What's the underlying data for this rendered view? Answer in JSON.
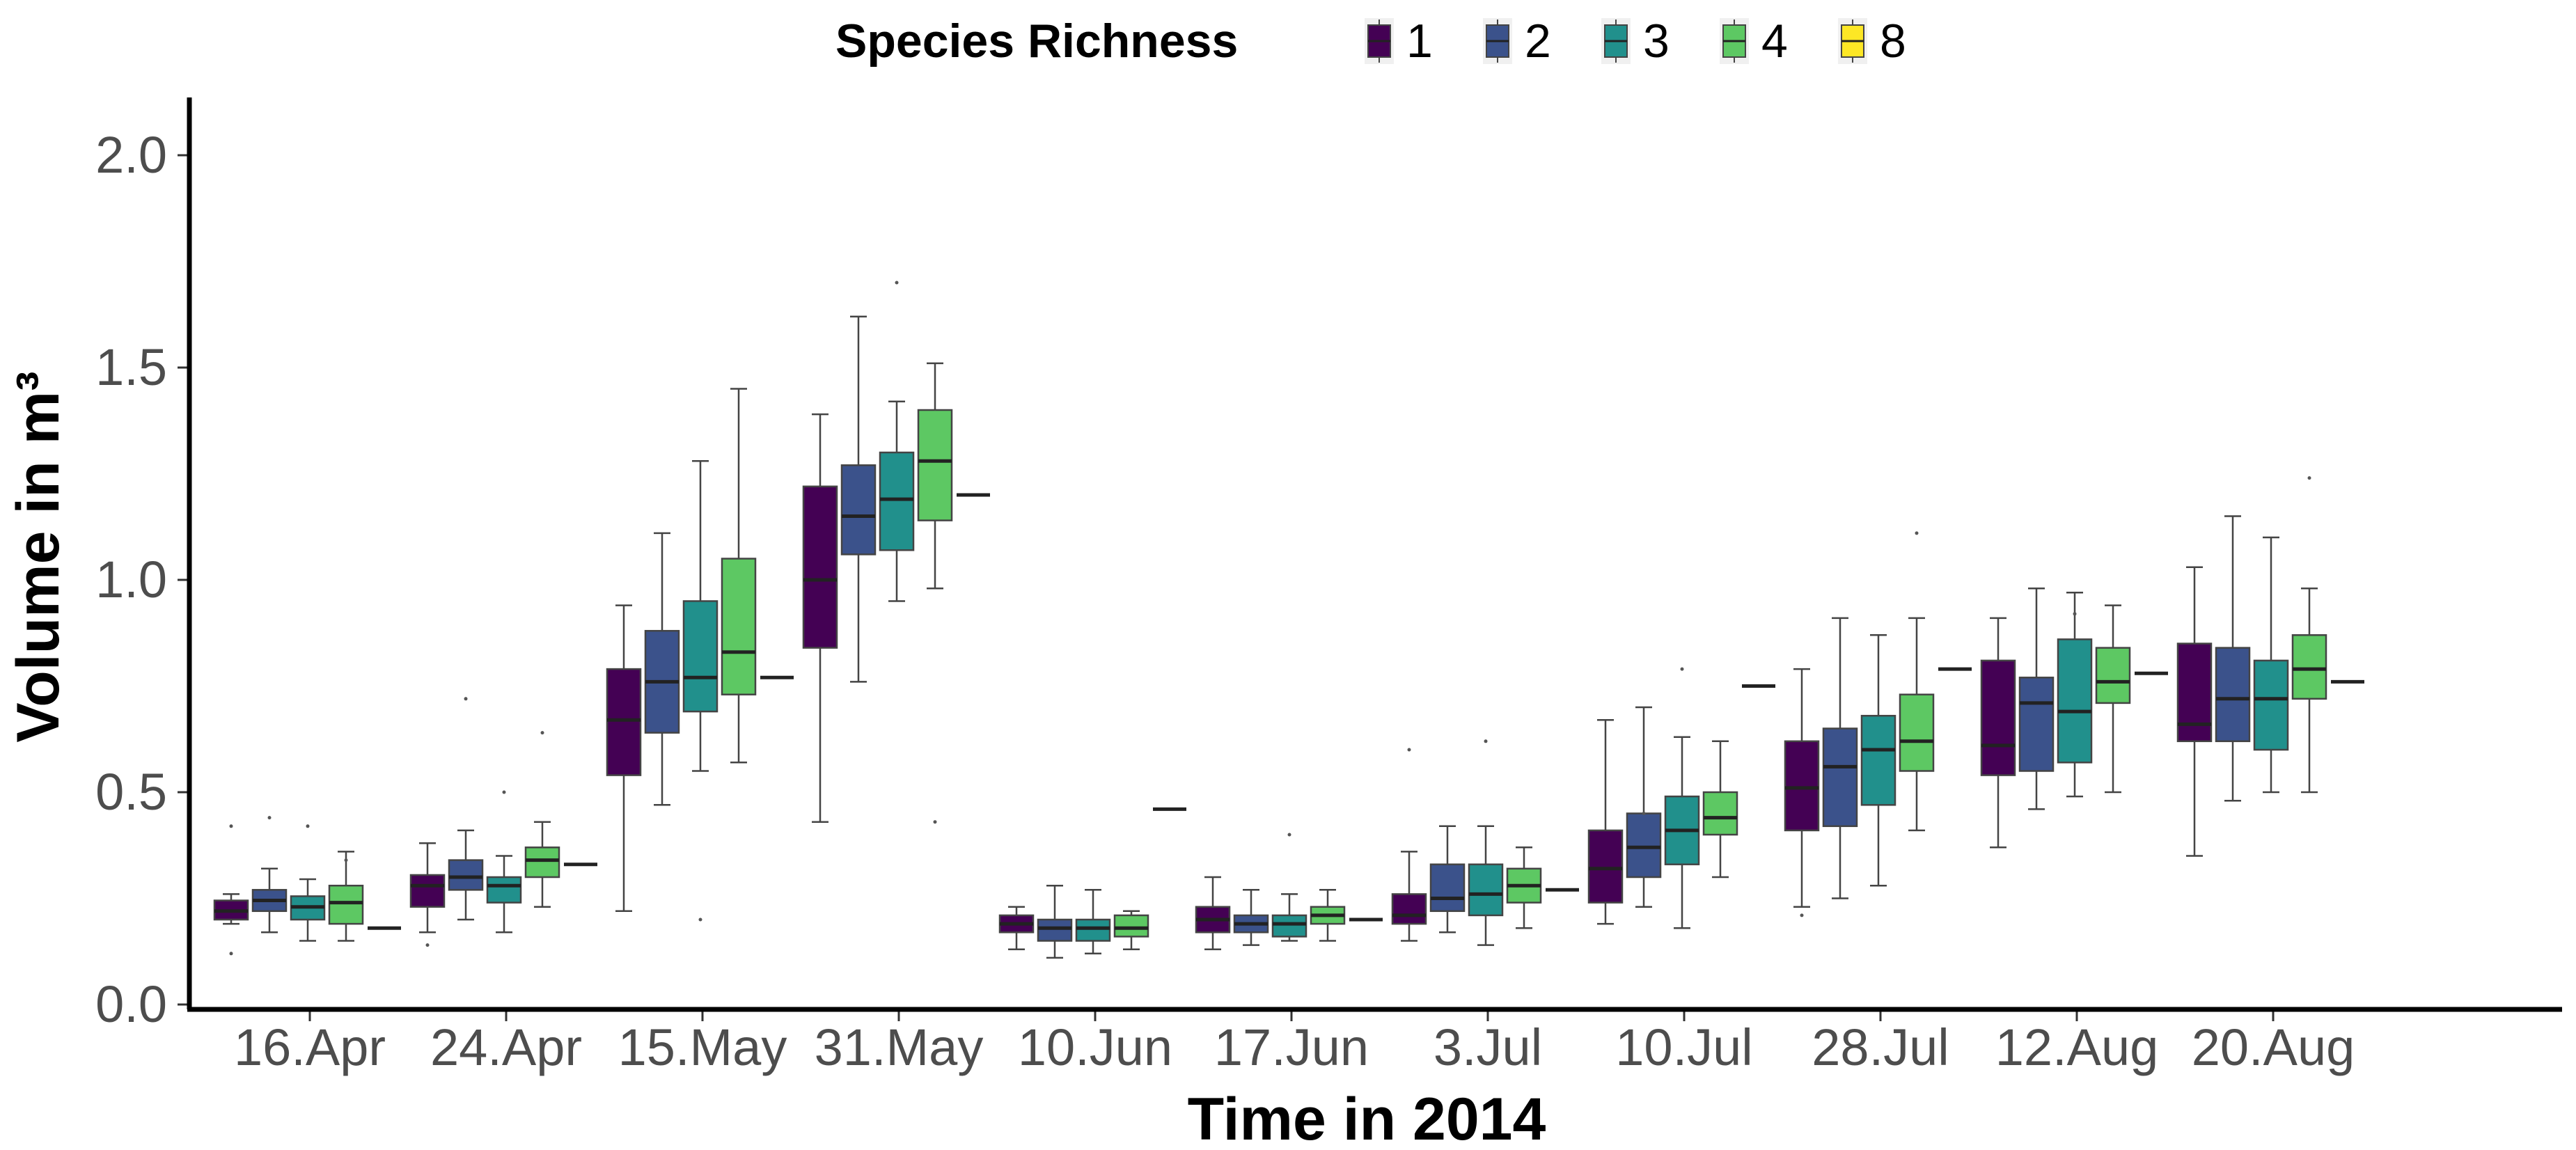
{
  "chart_data": {
    "type": "boxplot",
    "title": "",
    "xlabel": "Time in 2014",
    "ylabel": "Volume in m³",
    "ylim": [
      0,
      2.0
    ],
    "yticks": [
      "0.0",
      "0.5",
      "1.0",
      "1.5",
      "2.0"
    ],
    "ytick_values": [
      0,
      0.5,
      1.0,
      1.5,
      2.0
    ],
    "grid": false,
    "legend": {
      "title": "Species Richness",
      "position": "top",
      "entries": [
        "1",
        "2",
        "3",
        "4",
        "8"
      ]
    },
    "series": [
      {
        "name": "1",
        "color": "#440154"
      },
      {
        "name": "2",
        "color": "#3B528B"
      },
      {
        "name": "3",
        "color": "#21908C"
      },
      {
        "name": "4",
        "color": "#5DC863"
      },
      {
        "name": "8",
        "color": "#FDE725"
      }
    ],
    "categories": [
      "16.Apr",
      "24.Apr",
      "15.May",
      "31.May",
      "10.Jun",
      "17.Jun",
      "3.Jul",
      "10.Jul",
      "28.Jul",
      "12.Aug",
      "20.Aug"
    ],
    "boxes": [
      [
        {
          "min": 0.19,
          "q1": 0.2,
          "median": 0.22,
          "q3": 0.245,
          "max": 0.26
        },
        {
          "min": 0.17,
          "q1": 0.22,
          "median": 0.245,
          "q3": 0.27,
          "max": 0.32
        },
        {
          "min": 0.15,
          "q1": 0.2,
          "median": 0.23,
          "q3": 0.255,
          "max": 0.295
        },
        {
          "min": 0.15,
          "q1": 0.19,
          "median": 0.24,
          "q3": 0.28,
          "max": 0.36
        },
        {
          "min": 0.18,
          "q1": 0.18,
          "median": 0.18,
          "q3": 0.18,
          "max": 0.18
        }
      ],
      [
        {
          "min": 0.17,
          "q1": 0.23,
          "median": 0.28,
          "q3": 0.305,
          "max": 0.38
        },
        {
          "min": 0.2,
          "q1": 0.27,
          "median": 0.3,
          "q3": 0.34,
          "max": 0.41
        },
        {
          "min": 0.17,
          "q1": 0.24,
          "median": 0.28,
          "q3": 0.3,
          "max": 0.35
        },
        {
          "min": 0.23,
          "q1": 0.3,
          "median": 0.34,
          "q3": 0.37,
          "max": 0.43
        },
        {
          "min": 0.33,
          "q1": 0.33,
          "median": 0.33,
          "q3": 0.33,
          "max": 0.33
        }
      ],
      [
        {
          "min": 0.22,
          "q1": 0.54,
          "median": 0.67,
          "q3": 0.79,
          "max": 0.94
        },
        {
          "min": 0.47,
          "q1": 0.64,
          "median": 0.76,
          "q3": 0.88,
          "max": 1.11
        },
        {
          "min": 0.55,
          "q1": 0.69,
          "median": 0.77,
          "q3": 0.95,
          "max": 1.28
        },
        {
          "min": 0.57,
          "q1": 0.73,
          "median": 0.83,
          "q3": 1.05,
          "max": 1.45
        },
        {
          "min": 0.77,
          "q1": 0.77,
          "median": 0.77,
          "q3": 0.77,
          "max": 0.77
        }
      ],
      [
        {
          "min": 0.43,
          "q1": 0.84,
          "median": 1.0,
          "q3": 1.22,
          "max": 1.39
        },
        {
          "min": 0.76,
          "q1": 1.06,
          "median": 1.15,
          "q3": 1.27,
          "max": 1.62
        },
        {
          "min": 0.95,
          "q1": 1.07,
          "median": 1.19,
          "q3": 1.3,
          "max": 1.42
        },
        {
          "min": 0.98,
          "q1": 1.14,
          "median": 1.28,
          "q3": 1.4,
          "max": 1.51
        },
        {
          "min": 1.2,
          "q1": 1.2,
          "median": 1.2,
          "q3": 1.2,
          "max": 1.2
        }
      ],
      [
        {
          "min": 0.13,
          "q1": 0.17,
          "median": 0.19,
          "q3": 0.21,
          "max": 0.23
        },
        {
          "min": 0.11,
          "q1": 0.15,
          "median": 0.18,
          "q3": 0.2,
          "max": 0.28
        },
        {
          "min": 0.12,
          "q1": 0.15,
          "median": 0.18,
          "q3": 0.2,
          "max": 0.27
        },
        {
          "min": 0.13,
          "q1": 0.16,
          "median": 0.18,
          "q3": 0.21,
          "max": 0.22
        },
        {
          "min": 0.46,
          "q1": 0.46,
          "median": 0.46,
          "q3": 0.46,
          "max": 0.46
        }
      ],
      [
        {
          "min": 0.13,
          "q1": 0.17,
          "median": 0.2,
          "q3": 0.23,
          "max": 0.3
        },
        {
          "min": 0.14,
          "q1": 0.17,
          "median": 0.19,
          "q3": 0.21,
          "max": 0.27
        },
        {
          "min": 0.15,
          "q1": 0.16,
          "median": 0.19,
          "q3": 0.21,
          "max": 0.26
        },
        {
          "min": 0.15,
          "q1": 0.19,
          "median": 0.21,
          "q3": 0.23,
          "max": 0.27
        },
        {
          "min": 0.2,
          "q1": 0.2,
          "median": 0.2,
          "q3": 0.2,
          "max": 0.2
        }
      ],
      [
        {
          "min": 0.15,
          "q1": 0.19,
          "median": 0.21,
          "q3": 0.26,
          "max": 0.36
        },
        {
          "min": 0.17,
          "q1": 0.22,
          "median": 0.25,
          "q3": 0.33,
          "max": 0.42
        },
        {
          "min": 0.14,
          "q1": 0.21,
          "median": 0.26,
          "q3": 0.33,
          "max": 0.42
        },
        {
          "min": 0.18,
          "q1": 0.24,
          "median": 0.28,
          "q3": 0.32,
          "max": 0.37
        },
        {
          "min": 0.27,
          "q1": 0.27,
          "median": 0.27,
          "q3": 0.27,
          "max": 0.27
        }
      ],
      [
        {
          "min": 0.19,
          "q1": 0.24,
          "median": 0.32,
          "q3": 0.41,
          "max": 0.67
        },
        {
          "min": 0.23,
          "q1": 0.3,
          "median": 0.37,
          "q3": 0.45,
          "max": 0.7
        },
        {
          "min": 0.18,
          "q1": 0.33,
          "median": 0.41,
          "q3": 0.49,
          "max": 0.63
        },
        {
          "min": 0.3,
          "q1": 0.4,
          "median": 0.44,
          "q3": 0.5,
          "max": 0.62
        },
        {
          "min": 0.75,
          "q1": 0.75,
          "median": 0.75,
          "q3": 0.75,
          "max": 0.75
        }
      ],
      [
        {
          "min": 0.23,
          "q1": 0.41,
          "median": 0.51,
          "q3": 0.62,
          "max": 0.79
        },
        {
          "min": 0.25,
          "q1": 0.42,
          "median": 0.56,
          "q3": 0.65,
          "max": 0.91
        },
        {
          "min": 0.28,
          "q1": 0.47,
          "median": 0.6,
          "q3": 0.68,
          "max": 0.87
        },
        {
          "min": 0.41,
          "q1": 0.55,
          "median": 0.62,
          "q3": 0.73,
          "max": 0.91
        },
        {
          "min": 0.79,
          "q1": 0.79,
          "median": 0.79,
          "q3": 0.79,
          "max": 0.79
        }
      ],
      [
        {
          "min": 0.37,
          "q1": 0.54,
          "median": 0.61,
          "q3": 0.81,
          "max": 0.91
        },
        {
          "min": 0.46,
          "q1": 0.55,
          "median": 0.71,
          "q3": 0.77,
          "max": 0.98
        },
        {
          "min": 0.49,
          "q1": 0.57,
          "median": 0.69,
          "q3": 0.86,
          "max": 0.97
        },
        {
          "min": 0.5,
          "q1": 0.71,
          "median": 0.76,
          "q3": 0.84,
          "max": 0.94
        },
        {
          "min": 0.78,
          "q1": 0.78,
          "median": 0.78,
          "q3": 0.78,
          "max": 0.78
        }
      ],
      [
        {
          "min": 0.35,
          "q1": 0.62,
          "median": 0.66,
          "q3": 0.85,
          "max": 1.03
        },
        {
          "min": 0.48,
          "q1": 0.62,
          "median": 0.72,
          "q3": 0.84,
          "max": 1.15
        },
        {
          "min": 0.5,
          "q1": 0.6,
          "median": 0.72,
          "q3": 0.81,
          "max": 1.1
        },
        {
          "min": 0.5,
          "q1": 0.72,
          "median": 0.79,
          "q3": 0.87,
          "max": 0.98
        },
        {
          "min": 0.76,
          "q1": 0.76,
          "median": 0.76,
          "q3": 0.76,
          "max": 0.76
        }
      ]
    ],
    "outliers": [
      [
        [
          0.12,
          0.42
        ],
        [
          0.44
        ],
        [
          0.42
        ],
        [
          0.34
        ],
        []
      ],
      [
        [
          0.14
        ],
        [
          0.72
        ],
        [
          0.5
        ],
        [
          0.64
        ],
        []
      ],
      [
        [],
        [],
        [
          0.2
        ],
        [],
        []
      ],
      [
        [],
        [],
        [
          1.7
        ],
        [
          0.43
        ],
        []
      ],
      [
        [],
        [],
        [],
        [],
        []
      ],
      [
        [],
        [],
        [
          0.4
        ],
        [],
        []
      ],
      [
        [
          0.6
        ],
        [],
        [
          0.62
        ],
        [],
        []
      ],
      [
        [],
        [
          0.45
        ],
        [
          0.79
        ],
        [],
        []
      ],
      [
        [
          0.21
        ],
        [],
        [],
        [
          1.11
        ],
        []
      ],
      [
        [],
        [],
        [
          0.92
        ],
        [],
        []
      ],
      [
        [],
        [],
        [],
        [
          1.24
        ],
        []
      ]
    ]
  }
}
